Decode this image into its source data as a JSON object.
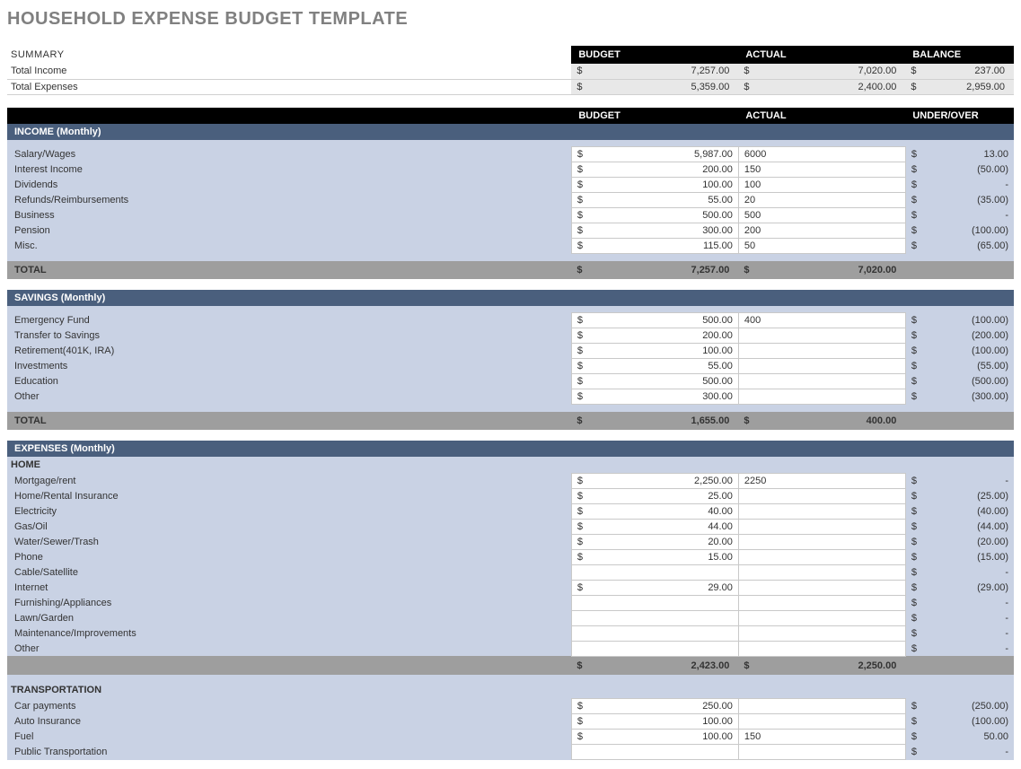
{
  "title": "HOUSEHOLD EXPENSE BUDGET TEMPLATE",
  "summary": {
    "heading": "SUMMARY",
    "headers": {
      "budget": "BUDGET",
      "actual": "ACTUAL",
      "balance": "BALANCE"
    },
    "rows": [
      {
        "label": "Total Income",
        "budget": "7,257.00",
        "actual": "7,020.00",
        "balance": "237.00"
      },
      {
        "label": "Total Expenses",
        "budget": "5,359.00",
        "actual": "2,400.00",
        "balance": "2,959.00"
      }
    ]
  },
  "col_headers": {
    "budget": "BUDGET",
    "actual": "ACTUAL",
    "under_over": "UNDER/OVER"
  },
  "income": {
    "title": "INCOME (Monthly)",
    "rows": [
      {
        "label": "Salary/Wages",
        "budget": "5,987.00",
        "actual": "6000",
        "uo": "13.00"
      },
      {
        "label": "Interest Income",
        "budget": "200.00",
        "actual": "150",
        "uo": "(50.00)"
      },
      {
        "label": "Dividends",
        "budget": "100.00",
        "actual": "100",
        "uo": "-"
      },
      {
        "label": "Refunds/Reimbursements",
        "budget": "55.00",
        "actual": "20",
        "uo": "(35.00)"
      },
      {
        "label": "Business",
        "budget": "500.00",
        "actual": "500",
        "uo": "-"
      },
      {
        "label": "Pension",
        "budget": "300.00",
        "actual": "200",
        "uo": "(100.00)"
      },
      {
        "label": "Misc.",
        "budget": "115.00",
        "actual": "50",
        "uo": "(65.00)"
      }
    ],
    "total": {
      "label": "TOTAL",
      "budget": "7,257.00",
      "actual": "7,020.00"
    }
  },
  "savings": {
    "title": "SAVINGS (Monthly)",
    "rows": [
      {
        "label": "Emergency Fund",
        "budget": "500.00",
        "actual": "400",
        "uo": "(100.00)"
      },
      {
        "label": "Transfer to Savings",
        "budget": "200.00",
        "actual": "",
        "uo": "(200.00)"
      },
      {
        "label": "Retirement(401K, IRA)",
        "budget": "100.00",
        "actual": "",
        "uo": "(100.00)"
      },
      {
        "label": "Investments",
        "budget": "55.00",
        "actual": "",
        "uo": "(55.00)"
      },
      {
        "label": "Education",
        "budget": "500.00",
        "actual": "",
        "uo": "(500.00)"
      },
      {
        "label": "Other",
        "budget": "300.00",
        "actual": "",
        "uo": "(300.00)"
      }
    ],
    "total": {
      "label": "TOTAL",
      "budget": "1,655.00",
      "actual": "400.00"
    }
  },
  "expenses": {
    "title": "EXPENSES (Monthly)",
    "groups": [
      {
        "heading": "HOME",
        "rows": [
          {
            "label": "Mortgage/rent",
            "budget": "2,250.00",
            "actual": "2250",
            "uo": "-"
          },
          {
            "label": "Home/Rental Insurance",
            "budget": "25.00",
            "actual": "",
            "uo": "(25.00)"
          },
          {
            "label": "Electricity",
            "budget": "40.00",
            "actual": "",
            "uo": "(40.00)"
          },
          {
            "label": "Gas/Oil",
            "budget": "44.00",
            "actual": "",
            "uo": "(44.00)"
          },
          {
            "label": "Water/Sewer/Trash",
            "budget": "20.00",
            "actual": "",
            "uo": "(20.00)"
          },
          {
            "label": "Phone",
            "budget": "15.00",
            "actual": "",
            "uo": "(15.00)"
          },
          {
            "label": "Cable/Satellite",
            "budget": "",
            "actual": "",
            "uo": "-"
          },
          {
            "label": "Internet",
            "budget": "29.00",
            "actual": "",
            "uo": "(29.00)"
          },
          {
            "label": "Furnishing/Appliances",
            "budget": "",
            "actual": "",
            "uo": "-"
          },
          {
            "label": "Lawn/Garden",
            "budget": "",
            "actual": "",
            "uo": "-"
          },
          {
            "label": "Maintenance/Improvements",
            "budget": "",
            "actual": "",
            "uo": "-"
          },
          {
            "label": "Other",
            "budget": "",
            "actual": "",
            "uo": "-"
          }
        ],
        "total": {
          "budget": "2,423.00",
          "actual": "2,250.00"
        }
      },
      {
        "heading": "TRANSPORTATION",
        "rows": [
          {
            "label": "Car payments",
            "budget": "250.00",
            "actual": "",
            "uo": "(250.00)"
          },
          {
            "label": "Auto Insurance",
            "budget": "100.00",
            "actual": "",
            "uo": "(100.00)"
          },
          {
            "label": "Fuel",
            "budget": "100.00",
            "actual": "150",
            "uo": "50.00"
          },
          {
            "label": "Public Transportation",
            "budget": "",
            "actual": "",
            "uo": "-"
          }
        ]
      }
    ]
  },
  "colors": {
    "title_grey": "#808080",
    "black": "#000000",
    "white": "#ffffff",
    "section_bar": "#4a5f7d",
    "section_body": "#c9d2e4",
    "total_bar": "#9e9e9e",
    "summary_row_bg": "#e8e8e8",
    "cell_border": "#c9c9c9"
  }
}
